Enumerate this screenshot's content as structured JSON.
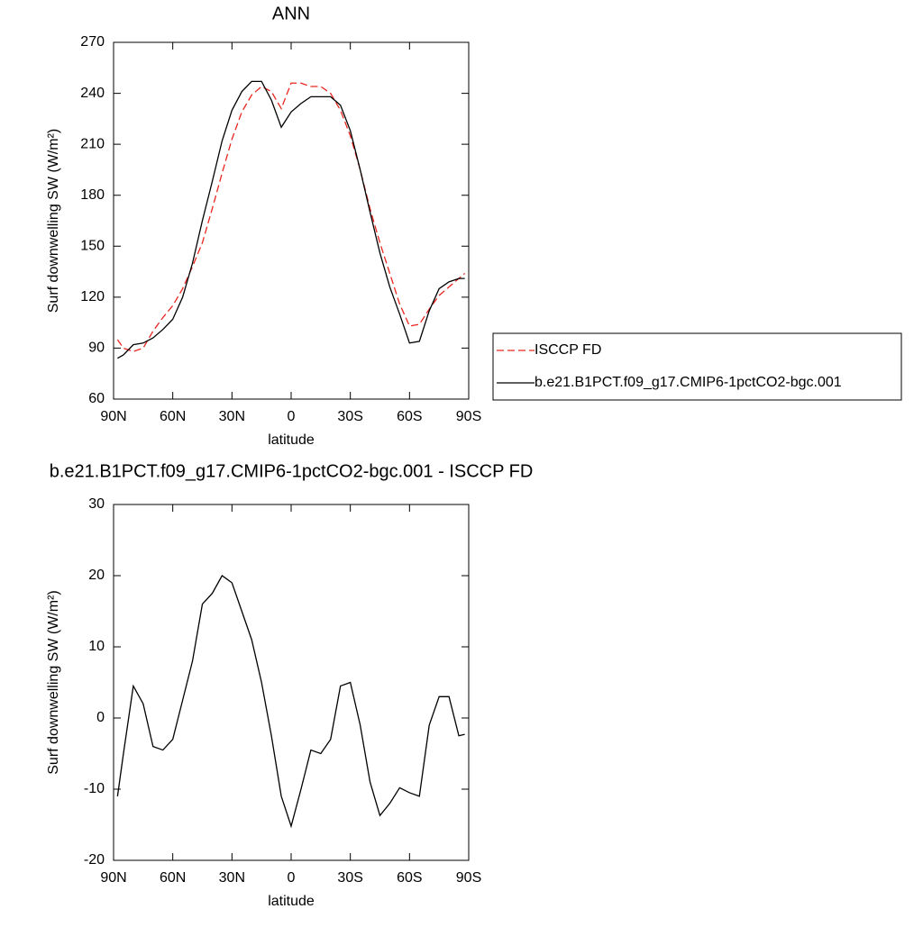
{
  "chart_data": [
    {
      "type": "line",
      "title": "ANN",
      "x_label": "latitude",
      "y_label": "Surf downwelling SW (W/m²)",
      "x": [
        88,
        85,
        80,
        75,
        70,
        65,
        60,
        55,
        50,
        45,
        40,
        35,
        30,
        25,
        20,
        15,
        10,
        5,
        0,
        -5,
        -10,
        -15,
        -20,
        -25,
        -30,
        -35,
        -40,
        -45,
        -50,
        -55,
        -60,
        -65,
        -70,
        -75,
        -80,
        -85,
        -88
      ],
      "xlim": [
        90,
        -90
      ],
      "xticks": [
        {
          "value": 90,
          "label": "90N"
        },
        {
          "value": 60,
          "label": "60N"
        },
        {
          "value": 30,
          "label": "30N"
        },
        0,
        {
          "value": -30,
          "label": "30S"
        },
        {
          "value": -60,
          "label": "60S"
        },
        {
          "value": -90,
          "label": "90S"
        }
      ],
      "ylim": [
        60,
        270
      ],
      "yticks": [
        60,
        90,
        120,
        150,
        180,
        210,
        240,
        270
      ],
      "legend": "right",
      "series": [
        {
          "name": "ISCCP FD",
          "color": "#e8261f",
          "line_style": "dashed",
          "values": [
            95,
            90,
            88,
            90,
            100,
            108,
            115,
            125,
            138,
            152,
            172,
            193,
            213,
            229,
            239,
            244,
            241,
            231,
            246,
            246,
            244,
            244,
            240,
            230,
            215,
            195,
            172,
            152,
            134,
            116,
            103,
            104,
            113,
            121,
            126,
            131,
            134
          ]
        },
        {
          "name": "b.e21.B1PCT.f09_g17.CMIP6-1pctCO2-bgc.001",
          "color": "#000000",
          "line_style": "solid",
          "values": [
            84,
            86,
            92,
            93,
            96,
            101,
            107,
            120,
            140,
            165,
            188,
            212,
            230,
            241,
            247,
            247,
            236,
            220,
            229,
            234,
            238,
            238,
            238,
            233,
            218,
            195,
            170,
            146,
            126,
            110,
            93,
            94,
            112,
            125,
            129,
            131,
            131
          ]
        }
      ]
    },
    {
      "type": "line",
      "title": "b.e21.B1PCT.f09_g17.CMIP6-1pctCO2-bgc.001 - ISCCP FD",
      "x_label": "latitude",
      "y_label": "Surf downwelling SW (W/m²)",
      "x": [
        88,
        85,
        80,
        75,
        70,
        65,
        60,
        55,
        50,
        45,
        40,
        35,
        30,
        25,
        20,
        15,
        10,
        5,
        0,
        -5,
        -10,
        -15,
        -20,
        -25,
        -30,
        -35,
        -40,
        -45,
        -50,
        -55,
        -60,
        -65,
        -70,
        -75,
        -80,
        -85,
        -88
      ],
      "xlim": [
        90,
        -90
      ],
      "xticks": [
        {
          "value": 90,
          "label": "90N"
        },
        {
          "value": 60,
          "label": "60N"
        },
        {
          "value": 30,
          "label": "30N"
        },
        0,
        {
          "value": -30,
          "label": "30S"
        },
        {
          "value": -60,
          "label": "60S"
        },
        {
          "value": -90,
          "label": "90S"
        }
      ],
      "ylim": [
        -20,
        30
      ],
      "yticks": [
        -20,
        -10,
        0,
        10,
        20,
        30
      ],
      "series": [
        {
          "color": "#000000",
          "line_style": "solid",
          "values": [
            -11,
            -5,
            4.5,
            2,
            -4,
            -4.5,
            -3,
            2.5,
            8,
            16,
            17.5,
            20,
            19,
            15,
            11,
            5,
            -2.5,
            -11,
            -15.2,
            -10,
            -4.5,
            -5,
            -3,
            4.5,
            5,
            -1,
            -9,
            -13.7,
            -12,
            -9.8,
            -10.5,
            -11,
            -1,
            3,
            3,
            -2.5,
            -2.3
          ]
        }
      ]
    }
  ]
}
